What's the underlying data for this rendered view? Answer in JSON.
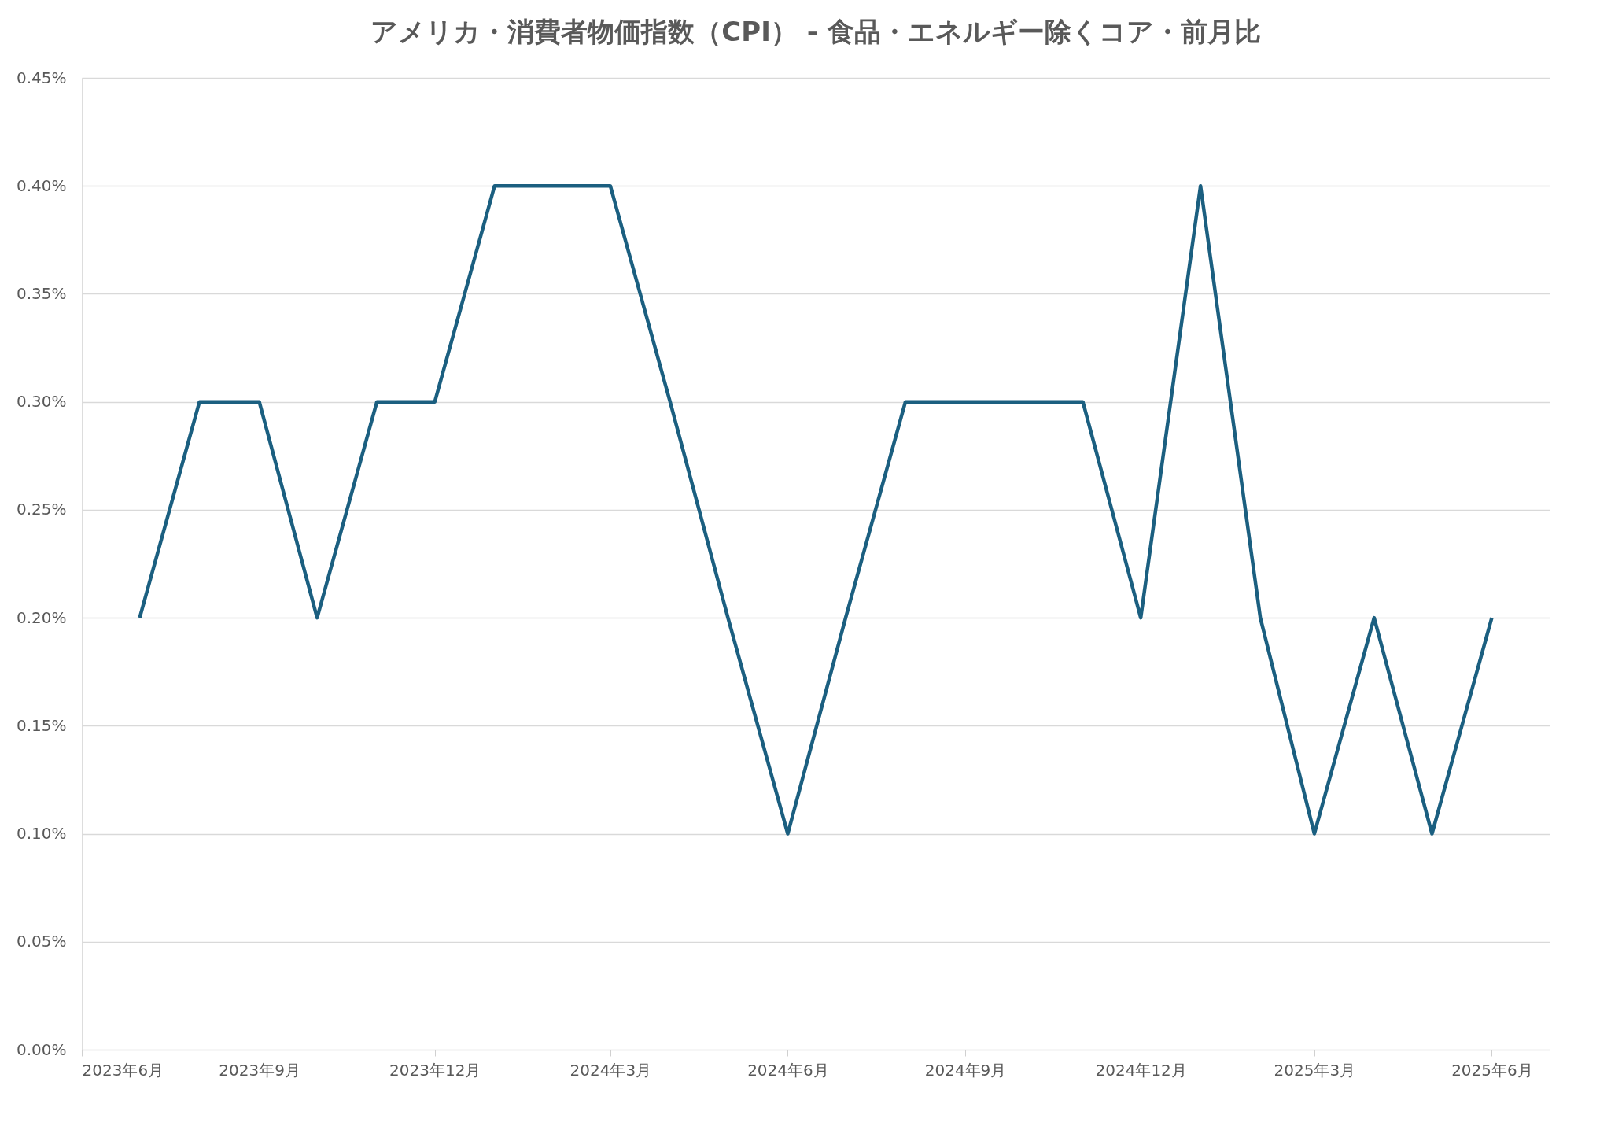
{
  "chart_data": {
    "type": "line",
    "title": "アメリカ・消費者物価指数（CPI） - 食品・エネルギー除くコア・前月比",
    "x": [
      "2023-07",
      "2023-08",
      "2023-09",
      "2023-10",
      "2023-11",
      "2023-12",
      "2024-01",
      "2024-02",
      "2024-03",
      "2024-04",
      "2024-05",
      "2024-06",
      "2024-07",
      "2024-08",
      "2024-09",
      "2024-10",
      "2024-11",
      "2024-12",
      "2025-01",
      "2025-02",
      "2025-03",
      "2025-04",
      "2025-05",
      "2025-06"
    ],
    "series": [
      {
        "color": "#1b5f80",
        "values": [
          0.2,
          0.3,
          0.3,
          0.2,
          0.3,
          0.3,
          0.4,
          0.4,
          0.4,
          0.3,
          0.2,
          0.1,
          0.2,
          0.3,
          0.3,
          0.3,
          0.3,
          0.2,
          0.4,
          0.2,
          0.1,
          0.2,
          0.1,
          0.2
        ]
      }
    ],
    "xlim": [
      "2023-06",
      "2025-07"
    ],
    "xticks": [
      {
        "value": "2023-06",
        "label": "2023年6月"
      },
      {
        "value": "2023-09",
        "label": "2023年9月"
      },
      {
        "value": "2023-12",
        "label": "2023年12月"
      },
      {
        "value": "2024-03",
        "label": "2024年3月"
      },
      {
        "value": "2024-06",
        "label": "2024年6月"
      },
      {
        "value": "2024-09",
        "label": "2024年9月"
      },
      {
        "value": "2024-12",
        "label": "2024年12月"
      },
      {
        "value": "2025-03",
        "label": "2025年3月"
      },
      {
        "value": "2025-06",
        "label": "2025年6月"
      }
    ],
    "ylim": [
      0,
      0.45
    ],
    "yticks": [
      {
        "value": 0,
        "label": "0.00%"
      },
      {
        "value": 0.05,
        "label": "0.05%"
      },
      {
        "value": 0.1,
        "label": "0.10%"
      },
      {
        "value": 0.15,
        "label": "0.15%"
      },
      {
        "value": 0.2,
        "label": "0.20%"
      },
      {
        "value": 0.25,
        "label": "0.25%"
      },
      {
        "value": 0.3,
        "label": "0.30%"
      },
      {
        "value": 0.35,
        "label": "0.35%"
      },
      {
        "value": 0.4,
        "label": "0.40%"
      },
      {
        "value": 0.45,
        "label": "0.45%"
      }
    ],
    "grid": "y",
    "legend": false,
    "marker": "none",
    "line_style": "solid"
  }
}
